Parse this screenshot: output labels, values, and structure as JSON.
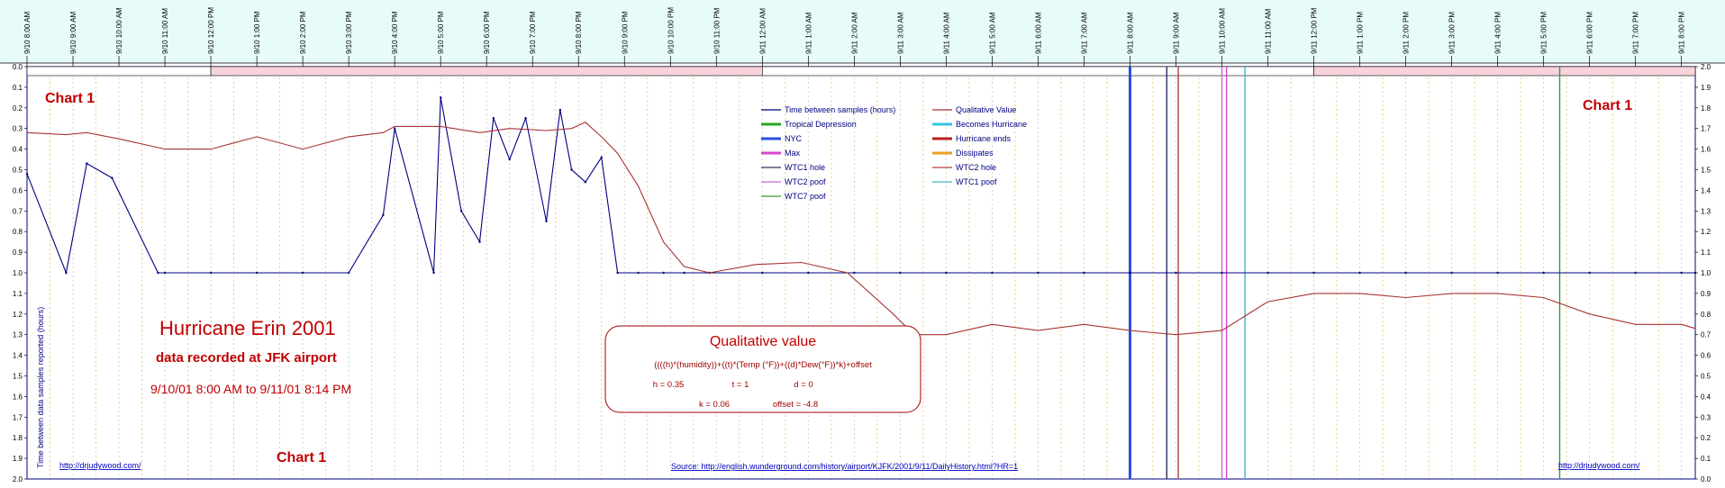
{
  "chart_data": {
    "type": "line",
    "labels": {
      "chart_tag": "Chart 1",
      "title": "Hurricane Erin 2001",
      "subtitle": "data recorded at JFK airport",
      "date_range": "9/10/01 8:00 AM to 9/11/01 8:14 PM",
      "left_axis_label": "Time between data samples reported (hours)"
    },
    "x_ticks": [
      "9/10 8:00 AM",
      "9/10 9:00 AM",
      "9/10 10:00 AM",
      "9/10 11:00 AM",
      "9/10 12:00 PM",
      "9/10 1:00 PM",
      "9/10 2:00 PM",
      "9/10 3:00 PM",
      "9/10 4:00 PM",
      "9/10 5:00 PM",
      "9/10 6:00 PM",
      "9/10 7:00 PM",
      "9/10 8:00 PM",
      "9/10 9:00 PM",
      "9/10 10:00 PM",
      "9/10 11:00 PM",
      "9/11 12:00 AM",
      "9/11 1:00 AM",
      "9/11 2:00 AM",
      "9/11 3:00 AM",
      "9/11 4:00 AM",
      "9/11 5:00 AM",
      "9/11 6:00 AM",
      "9/11 7:00 AM",
      "9/11 8:00 AM",
      "9/11 9:00 AM",
      "9/11 10:00 AM",
      "9/11 11:00 AM",
      "9/11 12:00 PM",
      "9/11 1:00 PM",
      "9/11 2:00 PM",
      "9/11 3:00 PM",
      "9/11 4:00 PM",
      "9/11 5:00 PM",
      "9/11 6:00 PM",
      "9/11 7:00 PM",
      "9/11 8:00 PM"
    ],
    "x_unit": "hours since 9/10 8:00 AM",
    "xlim": [
      0,
      36.3
    ],
    "y_left": {
      "ticks": [
        "0.0",
        "0.1",
        "0.2",
        "0.3",
        "0.4",
        "0.5",
        "0.6",
        "0.7",
        "0.8",
        "0.9",
        "1.0",
        "1.1",
        "1.2",
        "1.3",
        "1.4",
        "1.5",
        "1.6",
        "1.7",
        "1.8",
        "1.9",
        "2.0"
      ],
      "range": [
        0,
        2.0
      ],
      "inverted": true
    },
    "y_right": {
      "ticks": [
        "2.0",
        "1.9",
        "1.8",
        "1.7",
        "1.6",
        "1.5",
        "1.4",
        "1.3",
        "1.2",
        "1.1",
        "1.0",
        "0.9",
        "0.8",
        "0.7",
        "0.6",
        "0.5",
        "0.4",
        "0.3",
        "0.2",
        "0.1",
        "0.0"
      ],
      "range": [
        0,
        2.0
      ]
    },
    "grid": "dashed-vertical",
    "day_night_bar": [
      {
        "start": 0,
        "end": 4,
        "color": "#ffffff"
      },
      {
        "start": 4,
        "end": 16,
        "color": "#f7d3dc"
      },
      {
        "start": 16,
        "end": 28,
        "color": "#ffffff"
      },
      {
        "start": 28,
        "end": 36.3,
        "color": "#f7d3dc"
      }
    ],
    "series": [
      {
        "name": "Time between samples (hours)",
        "color": "#000080",
        "axis": "left",
        "x": [
          0,
          0.85,
          1.3,
          1.85,
          2.85,
          3.0,
          4.0,
          5.0,
          6.0,
          7.0,
          7.75,
          8.0,
          8.85,
          9.0,
          9.45,
          9.85,
          10.15,
          10.5,
          10.85,
          11.3,
          11.6,
          11.85,
          12.15,
          12.5,
          12.85,
          13.3,
          13.85,
          14.3,
          14.85,
          16.0,
          17.0,
          18.0,
          19.0,
          20.0,
          21.0,
          22.0,
          23.0,
          24.0,
          25.0,
          26.0,
          27.0,
          28.0,
          29.0,
          30.0,
          31.0,
          32.0,
          33.0,
          34.0,
          35.0,
          36.0,
          36.3
        ],
        "y": [
          0.52,
          1.0,
          0.47,
          0.54,
          1.0,
          1.0,
          1.0,
          1.0,
          1.0,
          1.0,
          0.72,
          0.3,
          1.0,
          0.15,
          0.7,
          0.85,
          0.25,
          0.45,
          0.25,
          0.75,
          0.21,
          0.5,
          0.56,
          0.44,
          1.0,
          1.0,
          1.0,
          1.0,
          1.0,
          1.0,
          1.0,
          1.0,
          1.0,
          1.0,
          1.0,
          1.0,
          1.0,
          1.0,
          1.0,
          1.0,
          1.0,
          1.0,
          1.0,
          1.0,
          1.0,
          1.0,
          1.0,
          1.0,
          1.0,
          1.0,
          1.0
        ]
      },
      {
        "name": "Qualitative Value",
        "color": "#a83232",
        "axis": "right",
        "x": [
          0,
          0.85,
          1.3,
          2.0,
          3.0,
          4.0,
          5.0,
          6.0,
          7.0,
          7.75,
          8.0,
          9.0,
          9.85,
          10.5,
          11.3,
          11.85,
          12.15,
          12.5,
          12.85,
          13.3,
          13.85,
          14.3,
          14.85,
          15.85,
          16.85,
          17.85,
          18.85,
          19.3,
          20.0,
          21.0,
          22.0,
          23.0,
          24.0,
          25.0,
          26.0,
          27.0,
          28.0,
          29.0,
          30.0,
          31.0,
          32.0,
          33.0,
          34.0,
          35.0,
          36.0,
          36.3
        ],
        "y": [
          1.68,
          1.67,
          1.68,
          1.65,
          1.6,
          1.6,
          1.66,
          1.6,
          1.66,
          1.68,
          1.71,
          1.71,
          1.68,
          1.7,
          1.69,
          1.7,
          1.73,
          1.66,
          1.58,
          1.42,
          1.15,
          1.03,
          1.0,
          1.04,
          1.05,
          1.0,
          0.8,
          0.7,
          0.7,
          0.75,
          0.72,
          0.75,
          0.72,
          0.7,
          0.72,
          0.86,
          0.9,
          0.9,
          0.88,
          0.9,
          0.9,
          0.88,
          0.8,
          0.75,
          0.75,
          0.73
        ]
      }
    ],
    "event_lines": [
      {
        "name": "Tropical Depression",
        "color": "#22aa22",
        "x": null
      },
      {
        "name": "Becomes Hurricane",
        "color": "#33c3e8",
        "x": null
      },
      {
        "name": "NYC",
        "color": "#2a4fe0",
        "x": 24.0
      },
      {
        "name": "Max",
        "color": "#dd44cc",
        "x": 26.1
      },
      {
        "name": "Hurricane ends",
        "color": "#b82020",
        "x": null
      },
      {
        "name": "Dissipates",
        "color": "#e8a020",
        "x": null
      },
      {
        "name": "WTC1 hole",
        "color": "#303060",
        "x": 24.8
      },
      {
        "name": "WTC2 hole",
        "color": "#b04040",
        "x": 25.05
      },
      {
        "name": "WTC2 poof",
        "color": "#cc66dd",
        "x": 26.0
      },
      {
        "name": "WTC1 poof",
        "color": "#44b8c8",
        "x": 26.5
      },
      {
        "name": "WTC7 poof",
        "color": "#339933",
        "x": 33.35
      }
    ],
    "legend": [
      "Time between samples (hours)",
      "Qualitative Value",
      "Tropical Depression",
      "Becomes Hurricane",
      "NYC",
      "Hurricane ends",
      "Max",
      "Dissipates",
      "WTC1 hole",
      "WTC2 hole",
      "WTC2 poof",
      "WTC1 poof",
      "WTC7 poof"
    ]
  },
  "formula_box": {
    "title": "Qualitative value",
    "formula": "((((h)*(humidity))+((t)*(Temp (°F))+((d)*Dew(°F))*k)+offset",
    "h": "h = 0.35",
    "t": "t = 1",
    "d": "d = 0",
    "k": "k = 0.06",
    "offset": "offset = -4.8"
  },
  "links": {
    "left": "http://drjudywood.com/",
    "source": "Source: http://english.wunderground.com/history/airport/KJFK/2001/9/11/DailyHistory.html?HR=1",
    "right": "http://drjudywood.com/"
  }
}
